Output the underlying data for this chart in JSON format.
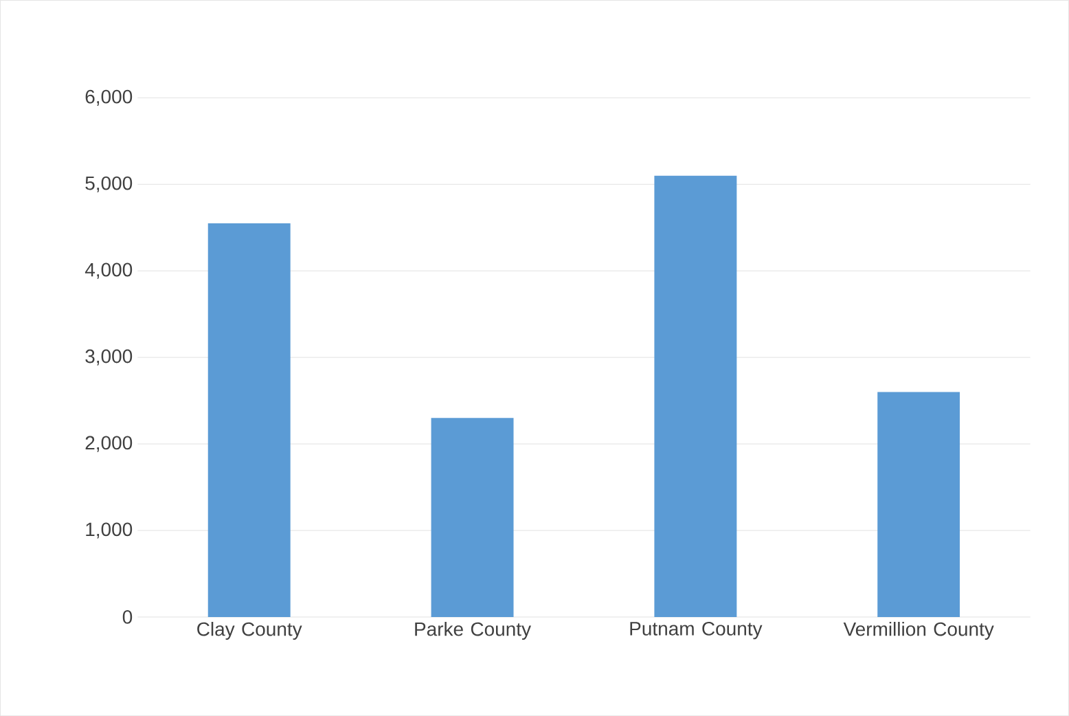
{
  "chart_data": {
    "type": "bar",
    "categories": [
      "Clay County",
      "Parke County",
      "Putnam County",
      "Vermillion County"
    ],
    "values": [
      4550,
      2300,
      5100,
      2600
    ],
    "color": "#5b9bd5",
    "ylim": [
      0,
      6000
    ],
    "yticks": [
      0,
      {
        "value": 1000,
        "label": "1,000"
      },
      {
        "value": 2000,
        "label": "2,000"
      },
      {
        "value": 3000,
        "label": "3,000"
      },
      {
        "value": 4000,
        "label": "4,000"
      },
      {
        "value": 5000,
        "label": "5,000"
      },
      {
        "value": 6000,
        "label": "6,000"
      }
    ],
    "grid": "y"
  }
}
